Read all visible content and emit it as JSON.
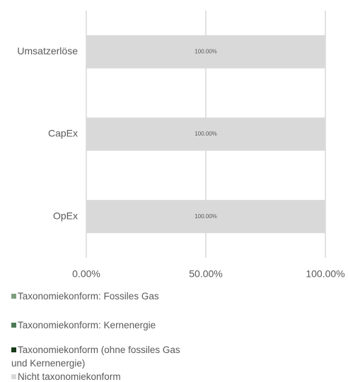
{
  "chart_data": {
    "type": "bar",
    "orientation": "horizontal",
    "stacked": true,
    "categories": [
      "Umsatzerlöse",
      "CapEx",
      "OpEx"
    ],
    "series": [
      {
        "name": "Taxonomiekonform: Fossiles Gas",
        "color": "#7f9f80",
        "values": [
          0,
          0,
          0
        ]
      },
      {
        "name": "Taxonomiekonform: Kernenergie",
        "color": "#4e7a58",
        "values": [
          0,
          0,
          0
        ]
      },
      {
        "name": "Taxonomiekonform (ohne fossiles Gas und Kernenergie)",
        "color": "#173a17",
        "values": [
          0,
          0,
          0
        ]
      },
      {
        "name": "Nicht taxonomiekonform",
        "color": "#d9d9d9",
        "values": [
          100,
          100,
          100
        ],
        "value_labels": [
          "100.00%",
          "100.00%",
          "100.00%"
        ]
      }
    ],
    "xlim": [
      0,
      100
    ],
    "xticks": [
      {
        "value": 0,
        "label": "0.00%"
      },
      {
        "value": 50,
        "label": "50.00%"
      },
      {
        "value": 100,
        "label": "100.00%"
      }
    ],
    "grid": true,
    "legend": "bottom"
  }
}
